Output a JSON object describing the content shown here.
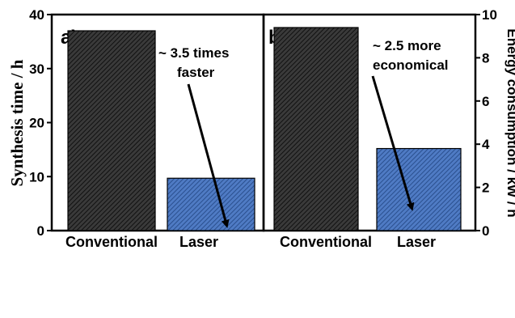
{
  "chart_data": [
    {
      "type": "bar",
      "panel_label": "a)",
      "categories": [
        "Conventional",
        "Laser"
      ],
      "values": [
        37,
        9.7
      ],
      "ylabel": "Synthesis time / h",
      "ylim": [
        0,
        40
      ],
      "yticks": [
        "0",
        "10",
        "20",
        "30",
        "40"
      ],
      "bar_colors": [
        "#2b2b2b",
        "#3a63a8"
      ],
      "annotation": [
        "~ 3.5 times",
        "faster"
      ],
      "grid": false
    },
    {
      "type": "bar",
      "panel_label": "b)",
      "categories": [
        "Conventional",
        "Laser"
      ],
      "values": [
        9.4,
        3.8
      ],
      "ylabel": "Energy consumption / kW / h",
      "ylim": [
        0,
        10
      ],
      "yticks": [
        "0",
        "2",
        "4",
        "6",
        "8",
        "10"
      ],
      "bar_colors": [
        "#2b2b2b",
        "#3a63a8"
      ],
      "annotation": [
        "~ 2.5 more",
        "economical"
      ],
      "grid": false
    }
  ]
}
